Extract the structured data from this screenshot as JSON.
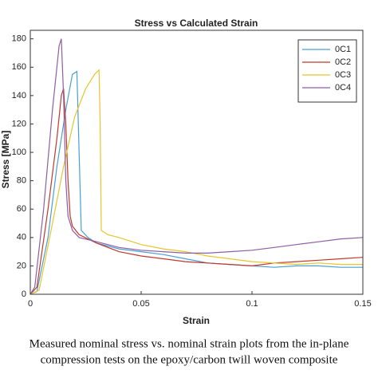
{
  "chart_data": {
    "type": "line",
    "title": "Stress vs Calculated Strain",
    "xlabel": "Strain",
    "ylabel": "Stress [MPa]",
    "caption": [
      "Measured nominal stress vs. nominal strain plots from the in-plane",
      "compression tests on the epoxy/carbon twill woven composite"
    ],
    "xlim": [
      0,
      0.15
    ],
    "xticks": [
      0,
      0.05,
      0.1,
      0.15
    ],
    "ylim": [
      0,
      186
    ],
    "yticks": [
      0,
      20,
      40,
      60,
      80,
      100,
      120,
      140,
      160,
      180
    ],
    "grid": false,
    "legend": "upper right",
    "series": [
      {
        "name": "0C1",
        "color": "#4a9fd4",
        "x": [
          0,
          0.003,
          0.008,
          0.012,
          0.016,
          0.019,
          0.021,
          0.022,
          0.023,
          0.026,
          0.03,
          0.04,
          0.05,
          0.06,
          0.07,
          0.08,
          0.09,
          0.1,
          0.11,
          0.12,
          0.13,
          0.14,
          0.15
        ],
        "values": [
          0,
          2,
          40,
          90,
          130,
          155,
          157,
          100,
          45,
          40,
          36,
          32,
          30,
          28,
          25,
          22,
          21,
          20,
          19,
          20,
          20,
          19,
          19
        ]
      },
      {
        "name": "0C2",
        "color": "#c0392b",
        "x": [
          0,
          0.003,
          0.008,
          0.012,
          0.014,
          0.015,
          0.016,
          0.017,
          0.018,
          0.019,
          0.022,
          0.03,
          0.04,
          0.05,
          0.06,
          0.07,
          0.08,
          0.09,
          0.1,
          0.11,
          0.12,
          0.13,
          0.14,
          0.15
        ],
        "values": [
          0,
          5,
          60,
          110,
          140,
          145,
          120,
          80,
          55,
          48,
          42,
          36,
          30,
          27,
          25,
          23,
          22,
          21,
          20,
          22,
          23,
          24,
          25,
          26
        ]
      },
      {
        "name": "0C3",
        "color": "#e8c52a",
        "x": [
          0,
          0.004,
          0.01,
          0.015,
          0.02,
          0.025,
          0.029,
          0.031,
          0.0315,
          0.032,
          0.035,
          0.04,
          0.05,
          0.06,
          0.07,
          0.08,
          0.09,
          0.1,
          0.11,
          0.12,
          0.13,
          0.14,
          0.15
        ],
        "values": [
          0,
          3,
          50,
          90,
          125,
          145,
          155,
          158,
          120,
          45,
          42,
          40,
          35,
          32,
          30,
          27,
          25,
          23,
          22,
          21,
          22,
          21,
          21
        ]
      },
      {
        "name": "0C4",
        "color": "#8e5ea2",
        "x": [
          0,
          0.002,
          0.006,
          0.01,
          0.013,
          0.014,
          0.015,
          0.016,
          0.017,
          0.019,
          0.022,
          0.03,
          0.04,
          0.05,
          0.06,
          0.07,
          0.08,
          0.09,
          0.1,
          0.11,
          0.12,
          0.13,
          0.14,
          0.15
        ],
        "values": [
          0,
          5,
          60,
          130,
          175,
          180,
          140,
          80,
          55,
          45,
          40,
          37,
          33,
          31,
          30,
          29,
          29,
          30,
          31,
          33,
          35,
          37,
          39,
          40
        ]
      }
    ]
  }
}
